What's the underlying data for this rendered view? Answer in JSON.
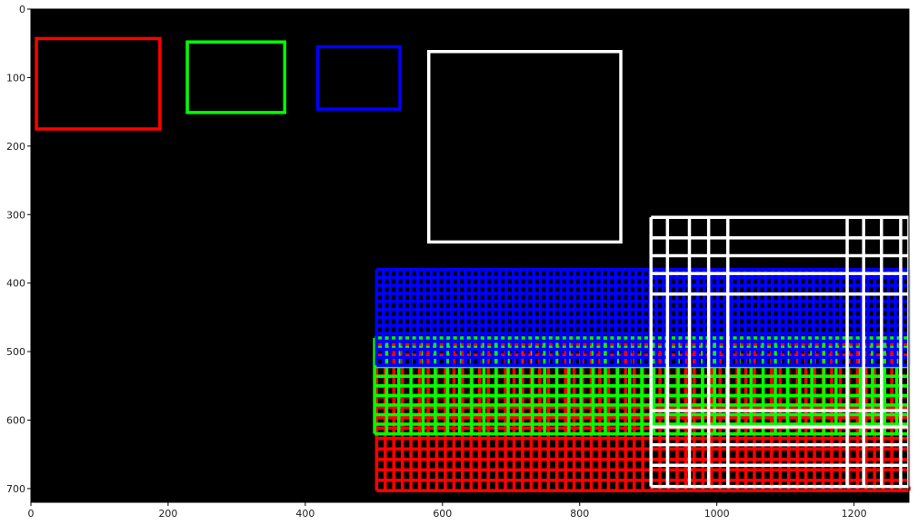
{
  "chart_data": {
    "type": "image",
    "title": "",
    "xlabel": "",
    "ylabel": "",
    "xlim": [
      0,
      1280
    ],
    "ylim": [
      720,
      0
    ],
    "grid": false,
    "background": "#000000",
    "xticks": [
      0,
      200,
      400,
      600,
      800,
      1000,
      1200
    ],
    "yticks": [
      0,
      100,
      200,
      300,
      400,
      500,
      600,
      700
    ],
    "rectangles": [
      {
        "color": "#ff0000",
        "x0": 8,
        "y0": 43,
        "x1": 188,
        "y1": 175
      },
      {
        "color": "#00ff00",
        "x0": 228,
        "y0": 48,
        "x1": 370,
        "y1": 151
      },
      {
        "color": "#0000ff",
        "x0": 418,
        "y0": 55,
        "x1": 538,
        "y1": 146
      },
      {
        "color": "#ffffff",
        "x0": 580,
        "y0": 62,
        "x1": 860,
        "y1": 340
      }
    ],
    "grids": [
      {
        "color": "#ff0000",
        "x0": 504,
        "x1": 1280,
        "y0": 490,
        "y1": 703,
        "cols": 62,
        "rows": 14
      },
      {
        "color": "#00ff00",
        "x0": 501,
        "x1": 1280,
        "y0": 480,
        "y1": 620,
        "cols": 44,
        "rows": 10
      },
      {
        "color": "#0000ff",
        "x0": 504,
        "x1": 1280,
        "y0": 380,
        "y1": 520,
        "cols": 78,
        "rows": 12
      },
      {
        "color": "#ffffff",
        "x0": 904,
        "x1": 1280,
        "y0": 304,
        "y1": 697,
        "xs": [
          904,
          928,
          960,
          988,
          1016,
          1190,
          1214,
          1240,
          1268,
          1280
        ],
        "ys": [
          304,
          334,
          360,
          386,
          416,
          586,
          610,
          636,
          666,
          697
        ]
      }
    ]
  }
}
